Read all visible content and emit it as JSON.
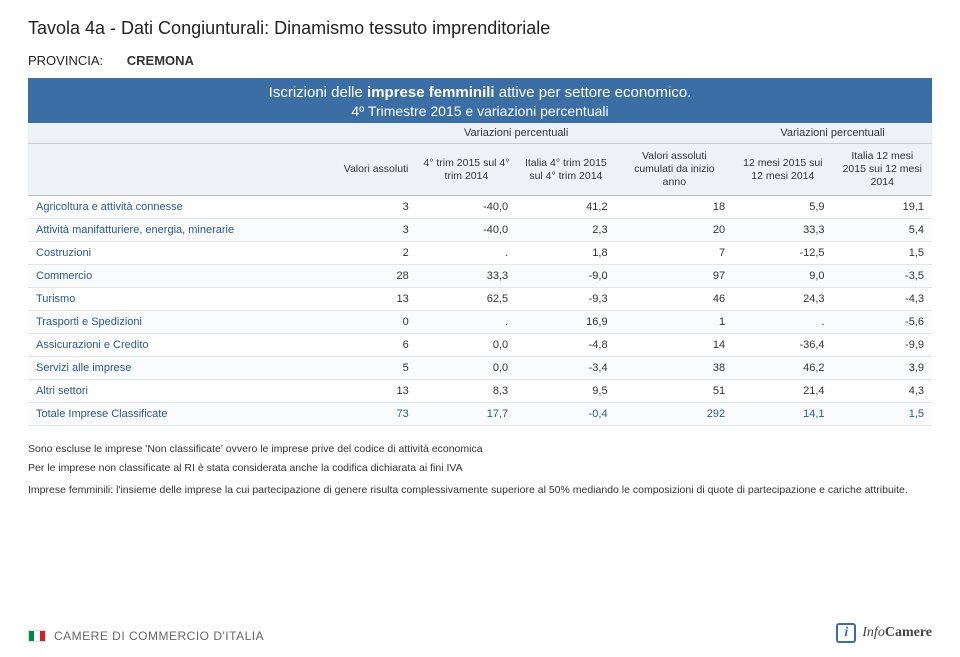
{
  "title": "Tavola 4a - Dati Congiunturali: Dinamismo tessuto imprenditoriale",
  "province_label": "PROVINCIA:",
  "province_value": "CREMONA",
  "banner": {
    "line1_pre": "Iscrizioni delle ",
    "line1_bold": "imprese femminili",
    "line1_post": " attive per settore economico.",
    "line2": "4º Trimestre 2015 e variazioni percentuali"
  },
  "headers": {
    "group_varpct": "Variazioni percentuali",
    "valori_assoluti": "Valori assoluti",
    "col1": "4° trim 2015 sul 4° trim 2014",
    "col2": "Italia 4° trim 2015 sul 4° trim 2014",
    "col3": "Valori assoluti cumulati da inizio anno",
    "col4": "12 mesi 2015 sui 12 mesi 2014",
    "col5": "Italia 12 mesi 2015 sui 12 mesi 2014"
  },
  "rows": [
    {
      "sector": "Agricoltura e attività connesse",
      "va": "3",
      "c1": "-40,0",
      "c2": "41,2",
      "c3": "18",
      "c4": "5,9",
      "c5": "19,1"
    },
    {
      "sector": "Attività manifatturiere, energia, minerarie",
      "va": "3",
      "c1": "-40,0",
      "c2": "2,3",
      "c3": "20",
      "c4": "33,3",
      "c5": "5,4"
    },
    {
      "sector": "Costruzioni",
      "va": "2",
      "c1": ".",
      "c2": "1,8",
      "c3": "7",
      "c4": "-12,5",
      "c5": "1,5"
    },
    {
      "sector": "Commercio",
      "va": "28",
      "c1": "33,3",
      "c2": "-9,0",
      "c3": "97",
      "c4": "9,0",
      "c5": "-3,5"
    },
    {
      "sector": "Turismo",
      "va": "13",
      "c1": "62,5",
      "c2": "-9,3",
      "c3": "46",
      "c4": "24,3",
      "c5": "-4,3"
    },
    {
      "sector": "Trasporti e Spedizioni",
      "va": "0",
      "c1": ".",
      "c2": "16,9",
      "c3": "1",
      "c4": ".",
      "c5": "-5,6"
    },
    {
      "sector": "Assicurazioni e Credito",
      "va": "6",
      "c1": "0,0",
      "c2": "-4,8",
      "c3": "14",
      "c4": "-36,4",
      "c5": "-9,9"
    },
    {
      "sector": "Servizi alle imprese",
      "va": "5",
      "c1": "0,0",
      "c2": "-3,4",
      "c3": "38",
      "c4": "46,2",
      "c5": "3,9"
    },
    {
      "sector": "Altri settori",
      "va": "13",
      "c1": "8,3",
      "c2": "9,5",
      "c3": "51",
      "c4": "21,4",
      "c5": "4,3"
    },
    {
      "sector": "Totale Imprese Classificate",
      "va": "73",
      "c1": "17,7",
      "c2": "-0,4",
      "c3": "292",
      "c4": "14,1",
      "c5": "1,5"
    }
  ],
  "notes": {
    "n1": "Sono escluse le imprese 'Non classificate' ovvero le imprese prive del codice di attività economica",
    "n2": "Per le imprese non classificate al RI è stata considerata anche la codifica dichiarata ai fini IVA",
    "n3": "Imprese femminili: l'insieme delle imprese la cui partecipazione di genere risulta complessivamente superiore al 50% mediando le composizioni di quote di partecipazione e cariche attribuite."
  },
  "footer": {
    "left": "CAMERE DI COMMERCIO D'ITALIA",
    "right_prefix": "Info",
    "right_suffix": "Camere"
  },
  "col_widths": [
    "34%",
    "9%",
    "11%",
    "11%",
    "13%",
    "11%",
    "11%"
  ]
}
